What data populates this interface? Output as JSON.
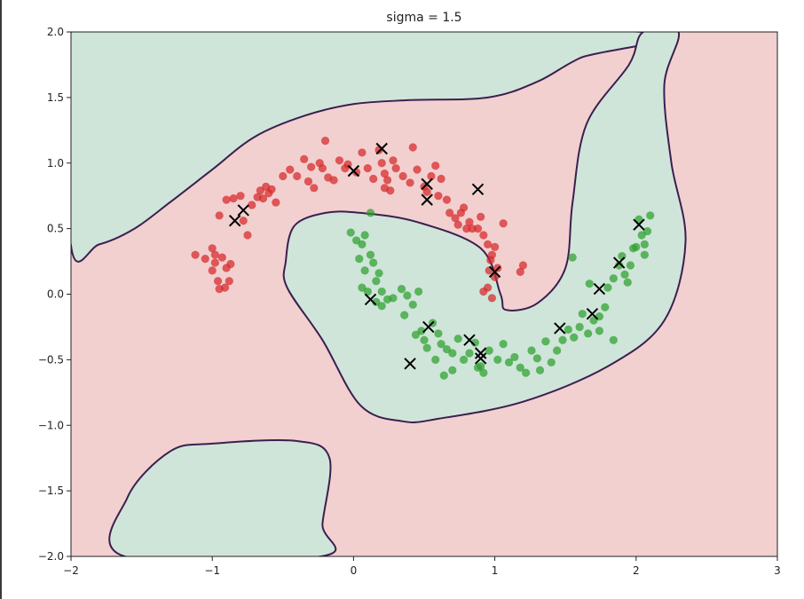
{
  "chart_data": {
    "type": "scatter",
    "title": "sigma = 1.5",
    "xlabel": "",
    "ylabel": "",
    "xlim": [
      -2,
      3
    ],
    "ylim": [
      -2,
      2
    ],
    "x_ticks": [
      -2,
      -1,
      0,
      1,
      2,
      3
    ],
    "x_tick_labels": [
      "−2",
      "−1",
      "0",
      "1",
      "2",
      "3"
    ],
    "y_ticks": [
      -2.0,
      -1.5,
      -1.0,
      -0.5,
      0.0,
      0.5,
      1.0,
      1.5,
      2.0
    ],
    "y_tick_labels": [
      "−2.0",
      "−1.5",
      "−1.0",
      "−0.5",
      "0.0",
      "0.5",
      "1.0",
      "1.5",
      "2.0"
    ],
    "grid": false,
    "legend": "none",
    "colors": {
      "class_red": "#d62728",
      "class_green": "#2ca02c",
      "region_red": "#f2d0d0",
      "region_green": "#cfe5d9",
      "boundary": "#3b1f4f",
      "support_vector": "#000000"
    },
    "series": [
      {
        "color": "#d62728",
        "points": [
          [
            -1.12,
            0.3
          ],
          [
            -1.05,
            0.27
          ],
          [
            -1.0,
            0.35
          ],
          [
            -0.98,
            0.24
          ],
          [
            -1.0,
            0.18
          ],
          [
            -0.96,
            0.1
          ],
          [
            -0.95,
            0.04
          ],
          [
            -0.91,
            0.05
          ],
          [
            -0.88,
            0.1
          ],
          [
            -0.9,
            0.2
          ],
          [
            -0.93,
            0.28
          ],
          [
            -0.87,
            0.23
          ],
          [
            -0.98,
            0.3
          ],
          [
            -0.95,
            0.6
          ],
          [
            -0.9,
            0.72
          ],
          [
            -0.85,
            0.73
          ],
          [
            -0.8,
            0.75
          ],
          [
            -0.78,
            0.56
          ],
          [
            -0.75,
            0.45
          ],
          [
            -0.72,
            0.68
          ],
          [
            -0.68,
            0.74
          ],
          [
            -0.66,
            0.79
          ],
          [
            -0.64,
            0.73
          ],
          [
            -0.6,
            0.77
          ],
          [
            -0.62,
            0.82
          ],
          [
            -0.58,
            0.8
          ],
          [
            -0.55,
            0.7
          ],
          [
            -0.5,
            0.9
          ],
          [
            -0.45,
            0.95
          ],
          [
            -0.4,
            0.9
          ],
          [
            -0.35,
            1.03
          ],
          [
            -0.32,
            0.86
          ],
          [
            -0.3,
            0.97
          ],
          [
            -0.28,
            0.81
          ],
          [
            -0.24,
            1.0
          ],
          [
            -0.22,
            0.96
          ],
          [
            -0.2,
            1.17
          ],
          [
            -0.18,
            0.89
          ],
          [
            -0.14,
            0.87
          ],
          [
            -0.1,
            1.02
          ],
          [
            -0.06,
            0.96
          ],
          [
            -0.04,
            0.99
          ],
          [
            0.02,
            0.93
          ],
          [
            0.06,
            1.08
          ],
          [
            0.1,
            0.96
          ],
          [
            0.14,
            0.88
          ],
          [
            0.18,
            1.1
          ],
          [
            0.2,
            1.0
          ],
          [
            0.22,
            0.92
          ],
          [
            0.24,
            0.87
          ],
          [
            0.26,
            0.79
          ],
          [
            0.22,
            0.81
          ],
          [
            0.28,
            1.02
          ],
          [
            0.3,
            0.96
          ],
          [
            0.35,
            0.9
          ],
          [
            0.4,
            0.85
          ],
          [
            0.42,
            1.12
          ],
          [
            0.45,
            0.95
          ],
          [
            0.5,
            0.82
          ],
          [
            0.52,
            0.78
          ],
          [
            0.55,
            0.9
          ],
          [
            0.58,
            0.98
          ],
          [
            0.6,
            0.75
          ],
          [
            0.62,
            0.88
          ],
          [
            0.66,
            0.72
          ],
          [
            0.68,
            0.62
          ],
          [
            0.72,
            0.58
          ],
          [
            0.74,
            0.53
          ],
          [
            0.76,
            0.62
          ],
          [
            0.78,
            0.66
          ],
          [
            0.8,
            0.5
          ],
          [
            0.82,
            0.55
          ],
          [
            0.84,
            0.5
          ],
          [
            0.88,
            0.5
          ],
          [
            0.9,
            0.59
          ],
          [
            0.92,
            0.45
          ],
          [
            0.95,
            0.38
          ],
          [
            0.97,
            0.26
          ],
          [
            0.98,
            0.3
          ],
          [
            0.96,
            0.18
          ],
          [
            0.95,
            0.05
          ],
          [
            1.02,
            0.2
          ],
          [
            0.98,
            -0.03
          ],
          [
            1.0,
            0.36
          ],
          [
            1.06,
            0.54
          ],
          [
            1.18,
            0.17
          ],
          [
            1.2,
            0.22
          ],
          [
            1.0,
            0.13
          ],
          [
            0.92,
            0.02
          ]
        ]
      },
      {
        "color": "#2ca02c",
        "points": [
          [
            -0.02,
            0.47
          ],
          [
            0.02,
            0.41
          ],
          [
            0.04,
            0.27
          ],
          [
            0.06,
            0.38
          ],
          [
            0.08,
            0.45
          ],
          [
            0.12,
            0.62
          ],
          [
            0.14,
            0.24
          ],
          [
            0.12,
            0.3
          ],
          [
            0.08,
            0.18
          ],
          [
            0.06,
            0.05
          ],
          [
            0.1,
            0.02
          ],
          [
            0.18,
            0.16
          ],
          [
            0.16,
            0.1
          ],
          [
            0.2,
            0.02
          ],
          [
            0.2,
            -0.09
          ],
          [
            0.24,
            -0.04
          ],
          [
            0.28,
            -0.03
          ],
          [
            0.34,
            0.04
          ],
          [
            0.38,
            -0.01
          ],
          [
            0.42,
            -0.08
          ],
          [
            0.46,
            0.02
          ],
          [
            0.44,
            -0.31
          ],
          [
            0.48,
            -0.28
          ],
          [
            0.5,
            -0.35
          ],
          [
            0.56,
            -0.22
          ],
          [
            0.6,
            -0.3
          ],
          [
            0.62,
            -0.38
          ],
          [
            0.66,
            -0.42
          ],
          [
            0.7,
            -0.45
          ],
          [
            0.74,
            -0.34
          ],
          [
            0.78,
            -0.5
          ],
          [
            0.82,
            -0.45
          ],
          [
            0.86,
            -0.37
          ],
          [
            0.88,
            -0.56
          ],
          [
            0.9,
            -0.55
          ],
          [
            0.92,
            -0.6
          ],
          [
            0.96,
            -0.43
          ],
          [
            1.02,
            -0.5
          ],
          [
            1.06,
            -0.38
          ],
          [
            1.1,
            -0.52
          ],
          [
            1.14,
            -0.48
          ],
          [
            1.18,
            -0.56
          ],
          [
            1.22,
            -0.6
          ],
          [
            1.26,
            -0.43
          ],
          [
            1.3,
            -0.49
          ],
          [
            1.36,
            -0.36
          ],
          [
            1.4,
            -0.52
          ],
          [
            1.44,
            -0.43
          ],
          [
            1.48,
            -0.35
          ],
          [
            1.52,
            -0.27
          ],
          [
            1.56,
            -0.33
          ],
          [
            1.6,
            -0.25
          ],
          [
            1.62,
            -0.15
          ],
          [
            1.66,
            -0.3
          ],
          [
            1.7,
            -0.2
          ],
          [
            1.74,
            -0.28
          ],
          [
            1.78,
            -0.1
          ],
          [
            1.8,
            0.05
          ],
          [
            1.84,
            0.12
          ],
          [
            1.88,
            0.22
          ],
          [
            1.9,
            0.29
          ],
          [
            1.92,
            0.15
          ],
          [
            1.94,
            0.09
          ],
          [
            1.96,
            0.22
          ],
          [
            1.98,
            0.35
          ],
          [
            2.0,
            0.36
          ],
          [
            2.02,
            0.57
          ],
          [
            2.04,
            0.45
          ],
          [
            2.06,
            0.3
          ],
          [
            2.08,
            0.48
          ],
          [
            2.1,
            0.6
          ],
          [
            2.06,
            0.38
          ],
          [
            1.84,
            -0.35
          ],
          [
            1.74,
            -0.17
          ],
          [
            1.55,
            0.28
          ],
          [
            1.67,
            0.08
          ],
          [
            0.7,
            -0.58
          ],
          [
            0.58,
            -0.5
          ],
          [
            0.36,
            -0.16
          ],
          [
            0.64,
            -0.62
          ],
          [
            0.52,
            -0.41
          ],
          [
            1.32,
            -0.58
          ],
          [
            0.16,
            -0.06
          ]
        ]
      }
    ],
    "support_vectors": [
      [
        -0.84,
        0.56
      ],
      [
        -0.78,
        0.64
      ],
      [
        0.0,
        0.94
      ],
      [
        0.2,
        1.11
      ],
      [
        0.52,
        0.84
      ],
      [
        0.52,
        0.72
      ],
      [
        0.88,
        0.8
      ],
      [
        1.0,
        0.17
      ],
      [
        0.12,
        -0.04
      ],
      [
        0.4,
        -0.53
      ],
      [
        0.53,
        -0.25
      ],
      [
        0.82,
        -0.35
      ],
      [
        0.9,
        -0.45
      ],
      [
        0.9,
        -0.49
      ],
      [
        1.46,
        -0.26
      ],
      [
        1.69,
        -0.15
      ],
      [
        1.74,
        0.04
      ],
      [
        1.88,
        0.24
      ],
      [
        2.02,
        0.53
      ]
    ],
    "decision_regions": {
      "green": [
        {
          "outline": [
            [
              -2.0,
              0.37
            ],
            [
              -1.8,
              0.38
            ],
            [
              -1.55,
              0.5
            ],
            [
              -1.3,
              0.7
            ],
            [
              -1.0,
              0.95
            ],
            [
              -0.7,
              1.2
            ],
            [
              -0.35,
              1.36
            ],
            [
              0.0,
              1.45
            ],
            [
              0.4,
              1.48
            ],
            [
              0.95,
              1.5
            ],
            [
              1.3,
              1.62
            ],
            [
              1.6,
              1.8
            ],
            [
              2.05,
              2.0
            ],
            [
              -2.0,
              2.0
            ]
          ]
        },
        {
          "outline": [
            [
              -0.48,
              0.25
            ],
            [
              -0.42,
              0.52
            ],
            [
              -0.2,
              0.62
            ],
            [
              0.05,
              0.62
            ],
            [
              0.45,
              0.55
            ],
            [
              0.9,
              0.35
            ],
            [
              1.04,
              0.0
            ],
            [
              1.08,
              -0.12
            ],
            [
              1.3,
              -0.07
            ],
            [
              1.5,
              0.2
            ],
            [
              1.55,
              0.7
            ],
            [
              1.65,
              1.3
            ],
            [
              1.95,
              1.75
            ],
            [
              2.05,
              2.0
            ],
            [
              2.3,
              2.0
            ],
            [
              2.2,
              1.6
            ],
            [
              2.25,
              1.0
            ],
            [
              2.35,
              0.4
            ],
            [
              2.2,
              -0.2
            ],
            [
              1.8,
              -0.55
            ],
            [
              1.2,
              -0.82
            ],
            [
              0.6,
              -0.95
            ],
            [
              0.35,
              -0.97
            ],
            [
              0.05,
              -0.85
            ],
            [
              -0.22,
              -0.35
            ],
            [
              -0.47,
              0.05
            ]
          ]
        },
        {
          "outline": [
            [
              -1.62,
              -2.0
            ],
            [
              -1.6,
              -1.55
            ],
            [
              -1.3,
              -1.2
            ],
            [
              -1.0,
              -1.14
            ],
            [
              -0.4,
              -1.12
            ],
            [
              -0.17,
              -1.25
            ],
            [
              -0.22,
              -1.75
            ],
            [
              -0.23,
              -2.0
            ]
          ]
        }
      ]
    }
  }
}
